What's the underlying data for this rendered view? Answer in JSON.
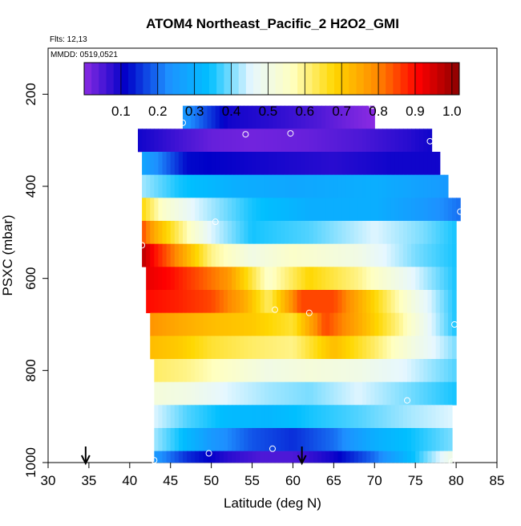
{
  "chart_data": {
    "type": "heatmap",
    "title": "ATOM4 Northeast_Pacific_2 H2O2_GMI",
    "flights_label": "Flts: 12,13",
    "dates_label": "MMDD: 0519,0521",
    "xlabel": "Latitude (deg N)",
    "ylabel": "PSXC (mbar)",
    "xlim": [
      30,
      85
    ],
    "ylim": [
      1000,
      100
    ],
    "x_ticks": [
      30,
      35,
      40,
      45,
      50,
      55,
      60,
      65,
      70,
      75,
      80,
      85
    ],
    "y_ticks": [
      200,
      400,
      600,
      800,
      1000
    ],
    "colorbar": {
      "range": [
        0,
        1.02
      ],
      "ticks": [
        0.1,
        0.2,
        0.3,
        0.4,
        0.5,
        0.6,
        0.7,
        0.8,
        0.9,
        1.0
      ],
      "tick_labels": [
        "0.1",
        "0.2",
        "0.3",
        "0.4",
        "0.5",
        "0.6",
        "0.7",
        "0.8",
        "0.9",
        "1.0"
      ],
      "colors": [
        "#8a2be2",
        "#0000c8",
        "#1e90ff",
        "#00bfff",
        "#e6f7ff",
        "#ffffc0",
        "#ffd700",
        "#ff8c00",
        "#ff0000",
        "#8b0000"
      ]
    },
    "grid": false,
    "bands": [
      {
        "p_top": 225,
        "p_bot": 275,
        "lat_min": 46.5,
        "lat_max": 70,
        "lats": [
          46.5,
          52,
          57,
          63,
          67,
          70
        ],
        "values": [
          0.25,
          0.1,
          0.08,
          0.05,
          0.02,
          0.0
        ]
      },
      {
        "p_top": 275,
        "p_bot": 325,
        "lat_min": 41,
        "lat_max": 77,
        "lats": [
          41,
          46,
          50,
          55,
          62,
          68,
          74,
          77
        ],
        "values": [
          0.1,
          0.06,
          0.03,
          0.02,
          0.03,
          0.05,
          0.08,
          0.1
        ]
      },
      {
        "p_top": 325,
        "p_bot": 375,
        "lat_min": 41.5,
        "lat_max": 78,
        "lats": [
          41.5,
          47,
          55,
          65,
          72,
          78
        ],
        "values": [
          0.28,
          0.12,
          0.1,
          0.08,
          0.1,
          0.1
        ]
      },
      {
        "p_top": 375,
        "p_bot": 425,
        "lat_min": 41.5,
        "lat_max": 79,
        "lats": [
          41.5,
          46,
          53,
          60,
          70,
          79
        ],
        "values": [
          0.42,
          0.35,
          0.3,
          0.28,
          0.3,
          0.25
        ]
      },
      {
        "p_top": 425,
        "p_bot": 475,
        "lat_min": 41.5,
        "lat_max": 80.5,
        "lats": [
          41.5,
          44,
          48,
          55,
          62,
          70,
          76,
          80.5
        ],
        "values": [
          0.68,
          0.55,
          0.45,
          0.35,
          0.3,
          0.3,
          0.25,
          0.2
        ]
      },
      {
        "p_top": 475,
        "p_bot": 525,
        "lat_min": 41.5,
        "lat_max": 80,
        "lats": [
          41.5,
          43,
          46,
          50,
          55,
          62,
          70,
          76,
          80
        ],
        "values": [
          0.85,
          0.75,
          0.62,
          0.45,
          0.35,
          0.38,
          0.45,
          0.4,
          0.35
        ]
      },
      {
        "p_top": 525,
        "p_bot": 575,
        "lat_min": 41.5,
        "lat_max": 80,
        "lats": [
          41.5,
          43,
          46,
          50,
          55,
          60,
          68,
          75,
          80
        ],
        "values": [
          0.98,
          0.9,
          0.78,
          0.6,
          0.5,
          0.55,
          0.5,
          0.4,
          0.35
        ]
      },
      {
        "p_top": 575,
        "p_bot": 625,
        "lat_min": 42,
        "lat_max": 80,
        "lats": [
          42,
          45,
          48,
          52,
          57,
          62,
          68,
          75,
          80
        ],
        "values": [
          0.93,
          0.9,
          0.85,
          0.78,
          0.55,
          0.68,
          0.6,
          0.45,
          0.35
        ]
      },
      {
        "p_top": 625,
        "p_bot": 675,
        "lat_min": 42,
        "lat_max": 80,
        "lats": [
          42,
          46,
          50,
          54,
          57,
          61,
          65,
          70,
          75,
          80
        ],
        "values": [
          0.9,
          0.88,
          0.85,
          0.75,
          0.62,
          0.85,
          0.85,
          0.68,
          0.5,
          0.35
        ]
      },
      {
        "p_top": 675,
        "p_bot": 725,
        "lat_min": 42.5,
        "lat_max": 80,
        "lats": [
          42.5,
          46,
          50,
          55,
          60,
          64,
          68,
          73,
          77,
          80
        ],
        "values": [
          0.78,
          0.75,
          0.72,
          0.7,
          0.65,
          0.85,
          0.75,
          0.6,
          0.45,
          0.35
        ]
      },
      {
        "p_top": 725,
        "p_bot": 775,
        "lat_min": 42.5,
        "lat_max": 80,
        "lats": [
          42.5,
          46,
          50,
          55,
          60,
          65,
          70,
          75,
          80
        ],
        "values": [
          0.72,
          0.7,
          0.65,
          0.62,
          0.6,
          0.72,
          0.62,
          0.5,
          0.4
        ]
      },
      {
        "p_top": 775,
        "p_bot": 825,
        "lat_min": 43,
        "lat_max": 80,
        "lats": [
          43,
          47,
          52,
          57,
          62,
          68,
          74,
          80
        ],
        "values": [
          0.62,
          0.6,
          0.55,
          0.5,
          0.52,
          0.5,
          0.45,
          0.38
        ]
      },
      {
        "p_top": 825,
        "p_bot": 875,
        "lat_min": 43,
        "lat_max": 80,
        "lats": [
          43,
          47,
          52,
          57,
          62,
          68,
          74,
          80
        ],
        "values": [
          0.52,
          0.5,
          0.45,
          0.42,
          0.4,
          0.45,
          0.4,
          0.35
        ]
      },
      {
        "p_top": 875,
        "p_bot": 925,
        "lat_min": 43,
        "lat_max": 79.5,
        "lats": [
          43,
          47,
          52,
          57,
          62,
          68,
          74,
          79.5
        ],
        "values": [
          0.45,
          0.38,
          0.33,
          0.32,
          0.35,
          0.38,
          0.42,
          0.45
        ]
      },
      {
        "p_top": 925,
        "p_bot": 975,
        "lat_min": 43,
        "lat_max": 79.5,
        "lats": [
          43,
          46,
          50,
          55,
          60,
          65,
          70,
          75,
          79.5
        ],
        "values": [
          0.42,
          0.35,
          0.25,
          0.18,
          0.15,
          0.2,
          0.3,
          0.35,
          0.4
        ]
      },
      {
        "p_top": 975,
        "p_bot": 1000,
        "lat_min": 43,
        "lat_max": 79.5,
        "lats": [
          43,
          47,
          52,
          56,
          60,
          65,
          70,
          75,
          79.5
        ],
        "values": [
          0.25,
          0.15,
          0.08,
          0.05,
          0.05,
          0.1,
          0.2,
          0.35,
          0.5
        ]
      }
    ],
    "points": [
      {
        "lat": 69.7,
        "p": 225
      },
      {
        "lat": 46.5,
        "p": 262
      },
      {
        "lat": 41,
        "p": 262
      },
      {
        "lat": 54.2,
        "p": 287
      },
      {
        "lat": 59.7,
        "p": 285
      },
      {
        "lat": 76.8,
        "p": 302
      },
      {
        "lat": 80.5,
        "p": 455
      },
      {
        "lat": 50.5,
        "p": 477
      },
      {
        "lat": 41.5,
        "p": 528
      },
      {
        "lat": 57.8,
        "p": 668
      },
      {
        "lat": 62,
        "p": 675
      },
      {
        "lat": 79.8,
        "p": 700
      },
      {
        "lat": 74,
        "p": 865
      },
      {
        "lat": 57.5,
        "p": 970
      },
      {
        "lat": 49.7,
        "p": 980
      },
      {
        "lat": 43,
        "p": 995
      },
      {
        "lat": 79.5,
        "p": 998
      }
    ],
    "arrows": [
      {
        "lat": 34.6,
        "label": ""
      },
      {
        "lat": 61.1,
        "label": ""
      }
    ]
  }
}
